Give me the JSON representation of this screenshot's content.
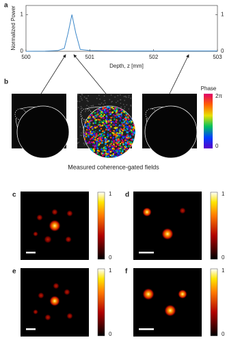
{
  "chart_data": {
    "type": "line",
    "panel_label": "a",
    "xlabel": "Depth, z [mm]",
    "ylabel": "Normalized Power",
    "x": [
      500,
      500.3,
      500.5,
      500.6,
      500.66,
      500.72,
      500.78,
      500.85,
      501,
      501.5,
      502,
      502.5,
      503
    ],
    "values": [
      0,
      0.005,
      0.02,
      0.08,
      0.5,
      1,
      0.5,
      0.05,
      0.02,
      0.01,
      0.01,
      0.01,
      0.01
    ],
    "color": "#3a86c8",
    "xlim": [
      500,
      503
    ],
    "xticks": [
      500,
      501,
      502,
      503
    ],
    "ylim": [
      0,
      1.25
    ],
    "yticks": [
      0,
      1
    ],
    "y2lim": [
      0,
      1.25
    ],
    "y2ticks": [
      0,
      1
    ]
  },
  "panel_b": {
    "label": "b",
    "colorbar_title": "Phase",
    "colorbar_max": "2π",
    "colorbar_min": 0,
    "caption": "Measured coherence-gated fields"
  },
  "panels": [
    {
      "label": "c",
      "colorbar_max": 1,
      "colorbar_min": 0
    },
    {
      "label": "d",
      "colorbar_max": 1,
      "colorbar_min": 0
    },
    {
      "label": "e",
      "colorbar_max": 1,
      "colorbar_min": 0
    },
    {
      "label": "f",
      "colorbar_max": 1,
      "colorbar_min": 0
    }
  ]
}
